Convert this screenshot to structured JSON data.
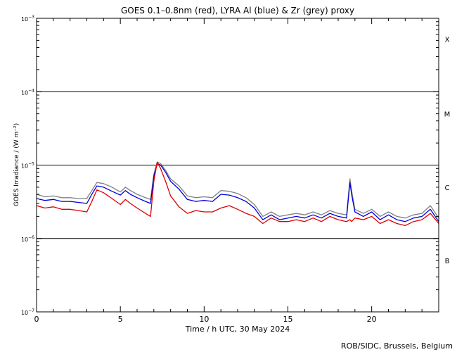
{
  "chart_data": {
    "type": "line",
    "title": "GOES 0.1–0.8nm (red), LYRA Al (blue) & Zr (grey) proxy",
    "xlabel": "Time / h UTC, 30 May 2024",
    "ylabel": "GOES Irradiance / (W m⁻²)",
    "credit": "ROB/SIDC, Brussels, Belgium",
    "y_scale": "log",
    "xlim": [
      0,
      24
    ],
    "ylim": [
      1e-07,
      0.001
    ],
    "x_ticks": [
      0,
      5,
      10,
      15,
      20
    ],
    "y_ticks": [
      {
        "value": 1e-07,
        "base": "10",
        "exp": "−7"
      },
      {
        "value": 1e-06,
        "base": "10",
        "exp": "−6"
      },
      {
        "value": 1e-05,
        "base": "10",
        "exp": "−5"
      },
      {
        "value": 0.0001,
        "base": "10",
        "exp": "−4"
      },
      {
        "value": 0.001,
        "base": "10",
        "exp": "−3"
      }
    ],
    "reference_lines": [
      1e-06,
      1e-05,
      0.0001
    ],
    "flare_classes": [
      {
        "label": "X",
        "y": 0.00052
      },
      {
        "label": "M",
        "y": 5e-05
      },
      {
        "label": "C",
        "y": 5e-06
      },
      {
        "label": "B",
        "y": 5e-07
      }
    ],
    "series": [
      {
        "color": "#808080",
        "x": [
          0,
          0.5,
          1,
          1.5,
          2,
          2.5,
          3,
          3.3,
          3.6,
          4,
          4.5,
          5,
          5.3,
          5.6,
          6,
          6.5,
          6.8,
          7,
          7.2,
          7.4,
          7.7,
          8,
          8.5,
          9,
          9.5,
          10,
          10.5,
          11,
          11.5,
          12,
          12.5,
          13,
          13.5,
          14,
          14.5,
          15,
          15.5,
          16,
          16.5,
          17,
          17.5,
          18,
          18.5,
          18.7,
          18.8,
          19,
          19.5,
          20,
          20.5,
          21,
          21.5,
          22,
          22.5,
          23,
          23.5,
          24
        ],
        "y": [
          4e-06,
          3.7e-06,
          3.8e-06,
          3.6e-06,
          3.6e-06,
          3.5e-06,
          3.5e-06,
          4.5e-06,
          5.8e-06,
          5.6e-06,
          5e-06,
          4.3e-06,
          5e-06,
          4.5e-06,
          4e-06,
          3.6e-06,
          3.4e-06,
          7.5e-06,
          1.1e-05,
          1.05e-05,
          8.5e-06,
          6.5e-06,
          5.2e-06,
          3.8e-06,
          3.6e-06,
          3.7e-06,
          3.6e-06,
          4.5e-06,
          4.4e-06,
          4.1e-06,
          3.6e-06,
          2.9e-06,
          2e-06,
          2.3e-06,
          2e-06,
          2.1e-06,
          2.2e-06,
          2.1e-06,
          2.3e-06,
          2.1e-06,
          2.4e-06,
          2.2e-06,
          2.1e-06,
          6.5e-06,
          4.5e-06,
          2.5e-06,
          2.2e-06,
          2.5e-06,
          2e-06,
          2.3e-06,
          2e-06,
          1.9e-06,
          2.1e-06,
          2.2e-06,
          2.8e-06,
          1.9e-06
        ]
      },
      {
        "color": "#0000dd",
        "x": [
          0,
          0.5,
          1,
          1.5,
          2,
          2.5,
          3,
          3.3,
          3.6,
          4,
          4.5,
          5,
          5.3,
          5.6,
          6,
          6.5,
          6.8,
          7,
          7.2,
          7.4,
          7.7,
          8,
          8.5,
          9,
          9.5,
          10,
          10.5,
          11,
          11.5,
          12,
          12.5,
          13,
          13.5,
          14,
          14.5,
          15,
          15.5,
          16,
          16.5,
          17,
          17.5,
          18,
          18.5,
          18.7,
          18.8,
          19,
          19.5,
          20,
          20.5,
          21,
          21.5,
          22,
          22.5,
          23,
          23.5,
          24
        ],
        "y": [
          3.5e-06,
          3.3e-06,
          3.4e-06,
          3.2e-06,
          3.2e-06,
          3.1e-06,
          3e-06,
          4e-06,
          5.2e-06,
          5e-06,
          4.4e-06,
          3.9e-06,
          4.5e-06,
          4e-06,
          3.6e-06,
          3.2e-06,
          3e-06,
          7e-06,
          1.05e-05,
          1e-05,
          8e-06,
          6e-06,
          4.7e-06,
          3.4e-06,
          3.2e-06,
          3.3e-06,
          3.2e-06,
          4e-06,
          3.9e-06,
          3.6e-06,
          3.2e-06,
          2.6e-06,
          1.8e-06,
          2.1e-06,
          1.8e-06,
          1.9e-06,
          2e-06,
          1.9e-06,
          2.1e-06,
          1.9e-06,
          2.2e-06,
          2e-06,
          1.9e-06,
          5.8e-06,
          4e-06,
          2.3e-06,
          2e-06,
          2.3e-06,
          1.8e-06,
          2.1e-06,
          1.8e-06,
          1.7e-06,
          1.9e-06,
          2e-06,
          2.5e-06,
          1.7e-06
        ]
      },
      {
        "color": "#dd0000",
        "x": [
          0,
          0.5,
          1,
          1.5,
          2,
          2.5,
          3,
          3.3,
          3.6,
          4,
          4.5,
          5,
          5.3,
          5.6,
          6,
          6.5,
          6.8,
          7,
          7.2,
          7.4,
          7.7,
          8,
          8.5,
          9,
          9.5,
          10,
          10.5,
          11,
          11.5,
          12,
          12.5,
          13,
          13.5,
          14,
          14.5,
          15,
          15.5,
          16,
          16.5,
          17,
          17.5,
          18,
          18.5,
          18.7,
          18.8,
          19,
          19.5,
          20,
          20.5,
          21,
          21.5,
          22,
          22.5,
          23,
          23.5,
          24
        ],
        "y": [
          2.8e-06,
          2.6e-06,
          2.7e-06,
          2.5e-06,
          2.5e-06,
          2.4e-06,
          2.3e-06,
          3.2e-06,
          4.6e-06,
          4.2e-06,
          3.5e-06,
          2.9e-06,
          3.4e-06,
          3e-06,
          2.6e-06,
          2.2e-06,
          2e-06,
          6e-06,
          1.1e-05,
          9e-06,
          6e-06,
          3.8e-06,
          2.7e-06,
          2.2e-06,
          2.4e-06,
          2.3e-06,
          2.3e-06,
          2.6e-06,
          2.8e-06,
          2.5e-06,
          2.2e-06,
          2e-06,
          1.6e-06,
          1.9e-06,
          1.7e-06,
          1.7e-06,
          1.8e-06,
          1.7e-06,
          1.9e-06,
          1.7e-06,
          2e-06,
          1.8e-06,
          1.7e-06,
          1.8e-06,
          1.7e-06,
          1.9e-06,
          1.8e-06,
          2e-06,
          1.6e-06,
          1.8e-06,
          1.6e-06,
          1.5e-06,
          1.7e-06,
          1.8e-06,
          2.2e-06,
          1.6e-06
        ]
      }
    ]
  }
}
